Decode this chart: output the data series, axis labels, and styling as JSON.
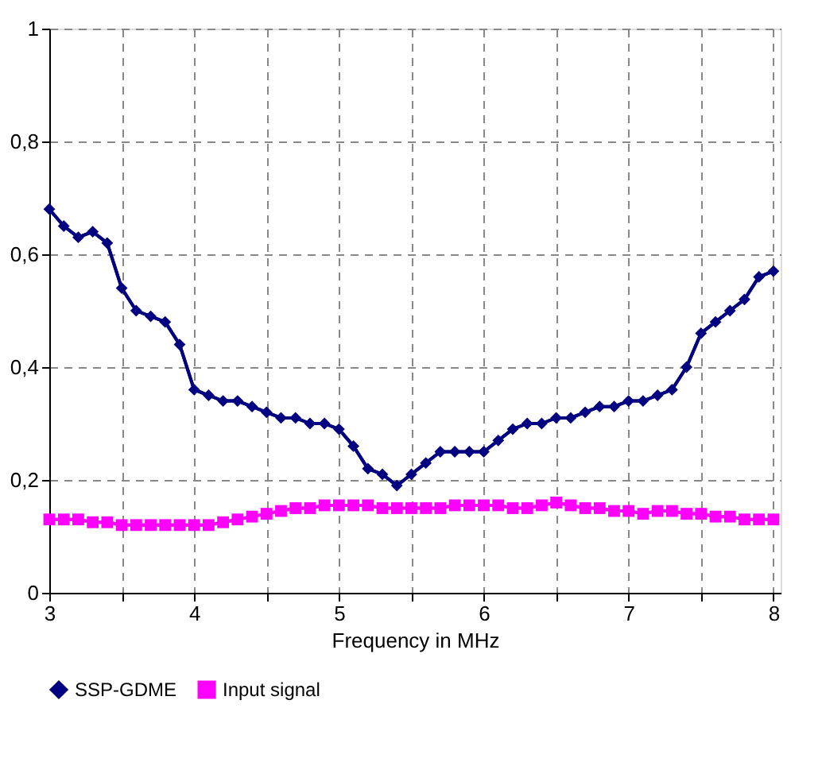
{
  "chart_data": {
    "type": "line",
    "xlabel": "Frequency in MHz",
    "x": [
      3.0,
      3.1,
      3.2,
      3.3,
      3.4,
      3.5,
      3.6,
      3.7,
      3.8,
      3.9,
      4.0,
      4.1,
      4.2,
      4.3,
      4.4,
      4.5,
      4.6,
      4.7,
      4.8,
      4.9,
      5.0,
      5.1,
      5.2,
      5.3,
      5.4,
      5.5,
      5.6,
      5.7,
      5.8,
      5.9,
      6.0,
      6.1,
      6.2,
      6.3,
      6.4,
      6.5,
      6.6,
      6.7,
      6.8,
      6.9,
      7.0,
      7.1,
      7.2,
      7.3,
      7.4,
      7.5,
      7.6,
      7.7,
      7.8,
      7.9,
      8.0
    ],
    "series": [
      {
        "name": "SSP-GDME",
        "color": "#000080",
        "marker": "diamond",
        "values": [
          0.68,
          0.65,
          0.63,
          0.64,
          0.62,
          0.54,
          0.5,
          0.49,
          0.48,
          0.44,
          0.36,
          0.35,
          0.34,
          0.34,
          0.33,
          0.32,
          0.31,
          0.31,
          0.3,
          0.3,
          0.29,
          0.26,
          0.22,
          0.21,
          0.19,
          0.21,
          0.23,
          0.25,
          0.25,
          0.25,
          0.25,
          0.27,
          0.29,
          0.3,
          0.3,
          0.31,
          0.31,
          0.32,
          0.33,
          0.33,
          0.34,
          0.34,
          0.35,
          0.36,
          0.4,
          0.46,
          0.48,
          0.5,
          0.52,
          0.56,
          0.57
        ]
      },
      {
        "name": "Input signal",
        "color": "#ff00ff",
        "marker": "square",
        "values": [
          0.13,
          0.13,
          0.13,
          0.125,
          0.125,
          0.12,
          0.12,
          0.12,
          0.12,
          0.12,
          0.12,
          0.12,
          0.125,
          0.13,
          0.135,
          0.14,
          0.145,
          0.15,
          0.15,
          0.155,
          0.155,
          0.155,
          0.155,
          0.15,
          0.15,
          0.15,
          0.15,
          0.15,
          0.155,
          0.155,
          0.155,
          0.155,
          0.15,
          0.15,
          0.155,
          0.16,
          0.155,
          0.15,
          0.15,
          0.145,
          0.145,
          0.14,
          0.145,
          0.145,
          0.14,
          0.14,
          0.135,
          0.135,
          0.13,
          0.13,
          0.13
        ]
      }
    ],
    "xlim": [
      3,
      8.05
    ],
    "xticks": [
      3,
      {
        "value": 3.5,
        "label": null
      },
      4,
      {
        "value": 4.5,
        "label": null
      },
      5,
      {
        "value": 5.5,
        "label": null
      },
      6,
      {
        "value": 6.5,
        "label": null
      },
      7,
      {
        "value": 7.5,
        "label": null
      },
      8
    ],
    "ylim": [
      0,
      1
    ],
    "yticks": [
      0,
      {
        "value": 0.2,
        "label": "0,2"
      },
      {
        "value": 0.4,
        "label": "0,4"
      },
      {
        "value": 0.6,
        "label": "0,6"
      },
      {
        "value": 0.8,
        "label": "0,8"
      },
      1
    ],
    "grid": true,
    "legend": "bottom",
    "line_style": "solid"
  }
}
